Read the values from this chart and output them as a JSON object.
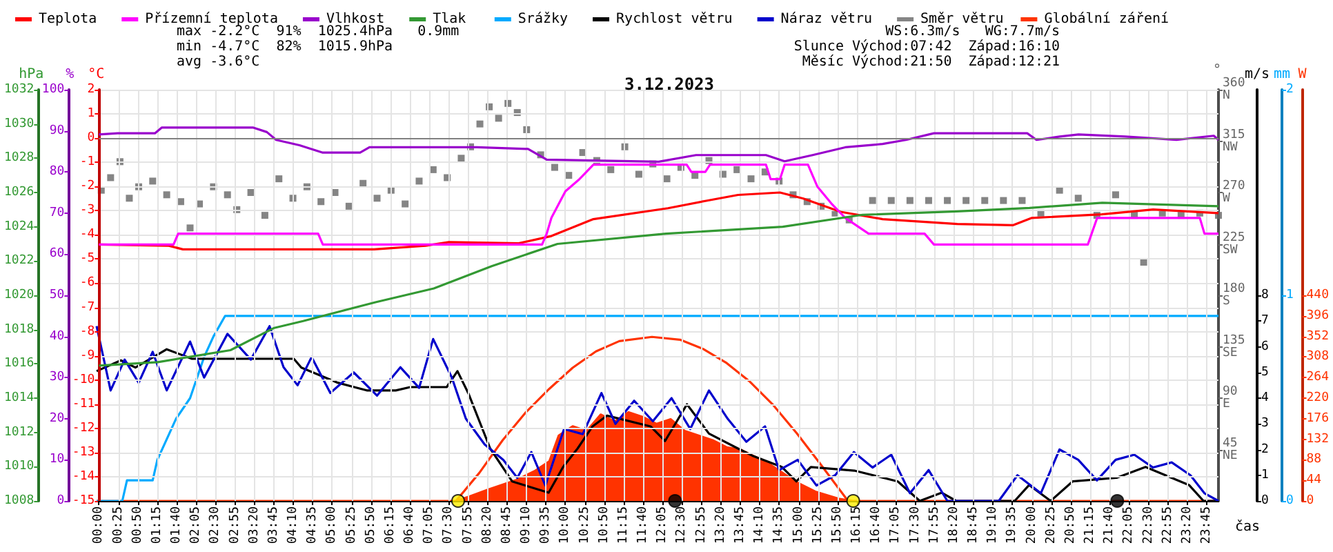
{
  "chart_data": [
    {
      "type": "line",
      "title": "3.12.2023",
      "xlabel": "čas",
      "ylabel": "°C",
      "y2label": "hPa",
      "y3label": "%",
      "xlim": [
        0,
        24
      ],
      "xticks": [
        {
          "value": 0,
          "label": "00:00"
        },
        {
          "value": 0.4167,
          "label": "00:25"
        },
        {
          "value": 0.8333,
          "label": "00:50"
        },
        {
          "value": 1.25,
          "label": "01:15"
        },
        {
          "value": 1.6667,
          "label": "01:40"
        },
        {
          "value": 2.0833,
          "label": "02:05"
        },
        {
          "value": 2.5,
          "label": "02:30"
        },
        {
          "value": 2.9167,
          "label": "02:55"
        },
        {
          "value": 3.3333,
          "label": "03:20"
        },
        {
          "value": 3.75,
          "label": "03:45"
        },
        {
          "value": 4.1667,
          "label": "04:10"
        },
        {
          "value": 4.5833,
          "label": "04:35"
        },
        {
          "value": 5,
          "label": "05:00"
        },
        {
          "value": 5.4167,
          "label": "05:25"
        },
        {
          "value": 5.8333,
          "label": "05:50"
        },
        {
          "value": 6.25,
          "label": "06:15"
        },
        {
          "value": 6.6667,
          "label": "06:40"
        },
        {
          "value": 7.0833,
          "label": "07:05"
        },
        {
          "value": 7.5,
          "label": "07:30"
        },
        {
          "value": 7.9167,
          "label": "07:55"
        },
        {
          "value": 8.3333,
          "label": "08:20"
        },
        {
          "value": 8.75,
          "label": "08:45"
        },
        {
          "value": 9.1667,
          "label": "09:10"
        },
        {
          "value": 9.5833,
          "label": "09:35"
        },
        {
          "value": 10,
          "label": "10:00"
        },
        {
          "value": 10.4167,
          "label": "10:25"
        },
        {
          "value": 10.8333,
          "label": "10:50"
        },
        {
          "value": 11.25,
          "label": "11:15"
        },
        {
          "value": 11.6667,
          "label": "11:40"
        },
        {
          "value": 12.0833,
          "label": "12:05"
        },
        {
          "value": 12.5,
          "label": "12:30"
        },
        {
          "value": 12.9167,
          "label": "12:55"
        },
        {
          "value": 13.3333,
          "label": "13:20"
        },
        {
          "value": 13.75,
          "label": "13:45"
        },
        {
          "value": 14.1667,
          "label": "14:10"
        },
        {
          "value": 14.5833,
          "label": "14:35"
        },
        {
          "value": 15,
          "label": "15:00"
        },
        {
          "value": 15.4167,
          "label": "15:25"
        },
        {
          "value": 15.8333,
          "label": "15:50"
        },
        {
          "value": 16.25,
          "label": "16:15"
        },
        {
          "value": 16.6667,
          "label": "16:40"
        },
        {
          "value": 17.0833,
          "label": "17:05"
        },
        {
          "value": 17.5,
          "label": "17:30"
        },
        {
          "value": 17.9167,
          "label": "17:55"
        },
        {
          "value": 18.3333,
          "label": "18:20"
        },
        {
          "value": 18.75,
          "label": "18:45"
        },
        {
          "value": 19.1667,
          "label": "19:10"
        },
        {
          "value": 19.5833,
          "label": "19:35"
        },
        {
          "value": 20,
          "label": "20:00"
        },
        {
          "value": 20.4167,
          "label": "20:25"
        },
        {
          "value": 20.8333,
          "label": "20:50"
        },
        {
          "value": 21.25,
          "label": "21:15"
        },
        {
          "value": 21.6667,
          "label": "21:40"
        },
        {
          "value": 22.0833,
          "label": "22:05"
        },
        {
          "value": 22.5,
          "label": "22:30"
        },
        {
          "value": 22.9167,
          "label": "22:55"
        },
        {
          "value": 23.3333,
          "label": "23:20"
        },
        {
          "value": 23.75,
          "label": "23:45"
        }
      ],
      "ylim": [
        -15,
        2
      ],
      "yticks": [
        -15,
        -14,
        -13,
        -12,
        -11,
        -10,
        -9,
        -8,
        -7,
        -6,
        -5,
        -4,
        -3,
        -2,
        -1,
        0,
        1,
        2
      ],
      "y2lim": [
        1008,
        1032
      ],
      "y2ticks": [
        1008,
        1010,
        1012,
        1014,
        1016,
        1018,
        1020,
        1022,
        1024,
        1026,
        1028,
        1030,
        1032
      ],
      "y3lim": [
        0,
        100
      ],
      "y3ticks": [
        0,
        10,
        20,
        30,
        40,
        50,
        60,
        70,
        80,
        90,
        100
      ],
      "grid": true,
      "legend": "top left",
      "ref_lines": [
        {
          "axis": "y",
          "value": 0,
          "color": "#808080"
        }
      ],
      "annotations": [
        "max -2.2°C  91%  1025.4hPa   0.9mm",
        "min -4.7°C  82%  1015.9hPa",
        "avg -3.6°C",
        "WS:6.3m/s   WG:7.7m/s",
        "Slunce Východ:07:42  Západ:16:10",
        "Měsíc Východ:21:50  Západ:12:21"
      ],
      "series": [
        {
          "name": "Teplota",
          "color": "#ff0000",
          "marker": "none",
          "x": [
            0,
            1.5,
            1.8,
            5.9,
            7.0,
            7.5,
            9,
            9.7,
            10.6,
            12.2,
            13,
            13.7,
            14.6,
            15.1,
            15.9,
            16.8,
            18.4,
            19.6,
            20,
            21.5,
            22.6,
            24
          ],
          "values": [
            -4.4,
            -4.45,
            -4.6,
            -4.6,
            -4.45,
            -4.3,
            -4.35,
            -4.05,
            -3.35,
            -2.9,
            -2.6,
            -2.35,
            -2.25,
            -2.5,
            -3.05,
            -3.35,
            -3.55,
            -3.6,
            -3.3,
            -3.15,
            -2.95,
            -3.1
          ]
        },
        {
          "name": "Přízemní teplota",
          "color": "#ff00ff",
          "marker": "none",
          "x": [
            0,
            1.6,
            1.7,
            4.7,
            4.8,
            9.5,
            9.6,
            9.7,
            10.0,
            10.3,
            10.6,
            12.6,
            12.7,
            13.0,
            13.1,
            14.3,
            14.4,
            14.6,
            14.7,
            15.2,
            15.4,
            15.7,
            16.0,
            16.5,
            17.7,
            17.9,
            21.2,
            21.4,
            23.6,
            23.7,
            24
          ],
          "values": [
            -4.4,
            -4.4,
            -3.95,
            -3.95,
            -4.4,
            -4.4,
            -3.95,
            -3.3,
            -2.2,
            -1.7,
            -1.1,
            -1.1,
            -1.4,
            -1.4,
            -1.1,
            -1.1,
            -1.7,
            -1.7,
            -1.1,
            -1.1,
            -2.0,
            -2.7,
            -3.3,
            -3.95,
            -3.95,
            -4.4,
            -4.4,
            -3.3,
            -3.3,
            -3.95,
            -3.95
          ]
        },
        {
          "name": "Vlhkost",
          "axis": "y3",
          "color": "#9900cc",
          "marker": "none",
          "x": [
            0,
            0.4,
            1.2,
            1.35,
            3.3,
            3.6,
            3.8,
            4.3,
            4.8,
            5.6,
            5.8,
            8.1,
            9.2,
            9.6,
            12.0,
            12.8,
            14.3,
            14.7,
            15.3,
            16.0,
            16.8,
            17.3,
            17.9,
            19.9,
            20.1,
            20.6,
            21,
            22,
            23.1,
            23.9,
            24
          ],
          "values": [
            89.1,
            89.4,
            89.4,
            90.8,
            90.8,
            89.7,
            87.8,
            86.5,
            84.7,
            84.7,
            86,
            86,
            85.6,
            83,
            82.5,
            84.1,
            84.1,
            82.6,
            84.1,
            86,
            86.8,
            87.8,
            89.4,
            89.4,
            87.8,
            88.6,
            89.1,
            88.6,
            87.8,
            88.8,
            87.8
          ]
        },
        {
          "name": "Tlak",
          "axis": "y2",
          "color": "#339933",
          "marker": "none",
          "x": [
            0,
            1.26,
            2.82,
            3.76,
            4.38,
            5.93,
            7.18,
            8.42,
            9.83,
            12.16,
            14.66,
            16.37,
            18.39,
            19.95,
            21.51,
            24
          ],
          "values": [
            1015.9,
            1016.1,
            1016.8,
            1018.1,
            1018.5,
            1019.6,
            1020.4,
            1021.7,
            1023.0,
            1023.6,
            1024.0,
            1024.7,
            1024.9,
            1025.1,
            1025.4,
            1025.2
          ]
        },
        {
          "type": "scatter",
          "color": "#ffee00",
          "marker": "circle",
          "x": [
            7.7,
            16.17
          ],
          "values": [
            -15,
            -15
          ]
        },
        {
          "type": "scatter",
          "color": "#000000",
          "marker": "circle",
          "x": [
            12.35,
            21.83
          ],
          "values": [
            -15,
            -15
          ]
        }
      ]
    },
    {
      "type": "line",
      "ylabel": "°",
      "y2label": "m/s",
      "y3label": "mm",
      "xlim": [
        0,
        24
      ],
      "tick_labels": "y",
      "legend": "top",
      "ylim": [
        0,
        360
      ],
      "yticks": [
        {
          "value": 45,
          "label": "45\nNE"
        },
        {
          "value": 90,
          "label": "90\nE"
        },
        {
          "value": 135,
          "label": "135\nSE"
        },
        {
          "value": 180,
          "label": "180\nS"
        },
        {
          "value": 225,
          "label": "225\nSW"
        },
        {
          "value": 270,
          "label": "270\nW"
        },
        {
          "value": 315,
          "label": "315\nNW"
        },
        {
          "value": 360,
          "label": "360\nN"
        }
      ],
      "y2lim": [
        0,
        16
      ],
      "y2ticks": [
        0,
        1,
        2,
        3,
        4,
        5,
        6,
        7,
        8
      ],
      "y3lim": [
        0,
        2
      ],
      "y3ticks": [
        0,
        1,
        2
      ],
      "series": [
        {
          "name": "Srážky",
          "axis": "y3",
          "color": "#00aaff",
          "marker": "none",
          "x": [
            0,
            0.55,
            0.65,
            1.2,
            1.3,
            1.5,
            1.7,
            2.0,
            2.3,
            2.5,
            2.75,
            24
          ],
          "values": [
            0,
            0,
            0.1,
            0.1,
            0.2,
            0.3,
            0.4,
            0.5,
            0.7,
            0.8,
            0.9,
            0.9
          ]
        },
        {
          "name": "Rychlost větru",
          "axis": "y2",
          "color": "#000000",
          "marker": "none",
          "x": [
            0,
            0.52,
            0.83,
            1.5,
            2.04,
            4.22,
            4.38,
            5.16,
            5.78,
            6.4,
            6.71,
            7.49,
            7.72,
            7.96,
            8.42,
            8.89,
            9.67,
            9.98,
            10.29,
            10.61,
            10.92,
            11.85,
            12.16,
            12.63,
            13.1,
            13.72,
            14.03,
            14.66,
            14.97,
            15.28,
            16.21,
            17.14,
            17.61,
            18.08,
            18.39,
            19.64,
            19.95,
            20.41,
            20.88,
            21.82,
            22.44,
            23.37,
            23.68,
            24
          ],
          "values": [
            5.05,
            5.47,
            5.19,
            5.9,
            5.53,
            5.53,
            5.19,
            4.6,
            4.3,
            4.3,
            4.43,
            4.43,
            5.05,
            4.16,
            2.04,
            0.76,
            0.32,
            1.32,
            2.04,
            2.9,
            3.32,
            2.9,
            2.33,
            3.76,
            2.62,
            2.04,
            1.76,
            1.32,
            0.76,
            1.32,
            1.18,
            0.76,
            0,
            0.32,
            0,
            0,
            0.62,
            0,
            0.76,
            0.9,
            1.32,
            0.62,
            0,
            0
          ]
        },
        {
          "name": "Náraz větru",
          "axis": "y2",
          "color": "#0000cc",
          "marker": "none",
          "x": [
            0,
            0.3,
            0.6,
            0.9,
            1.2,
            1.5,
            2.0,
            2.3,
            2.8,
            3.3,
            3.7,
            4.0,
            4.3,
            4.6,
            5.0,
            5.5,
            6.0,
            6.5,
            6.9,
            7.2,
            7.6,
            7.9,
            8.3,
            8.7,
            9.0,
            9.3,
            9.6,
            10.0,
            10.4,
            10.8,
            11.1,
            11.5,
            11.9,
            12.3,
            12.7,
            13.1,
            13.5,
            13.9,
            14.3,
            14.6,
            15.0,
            15.4,
            15.8,
            16.2,
            16.6,
            17.0,
            17.4,
            17.8,
            18.2,
            19.3,
            19.7,
            20.2,
            20.6,
            21.0,
            21.4,
            21.8,
            22.2,
            22.6,
            23.0,
            23.4,
            23.7,
            24
          ],
          "values": [
            6.8,
            4.3,
            5.5,
            4.6,
            5.8,
            4.3,
            6.2,
            4.8,
            6.5,
            5.5,
            6.8,
            5.2,
            4.5,
            5.6,
            4.2,
            5.0,
            4.1,
            5.2,
            4.4,
            6.3,
            4.8,
            3.2,
            2.2,
            1.6,
            0.9,
            1.9,
            0.6,
            2.8,
            2.6,
            4.2,
            3.0,
            3.9,
            3.1,
            4.0,
            2.8,
            4.3,
            3.2,
            2.3,
            2.9,
            1.2,
            1.6,
            0.6,
            1.0,
            1.9,
            1.3,
            1.8,
            0.3,
            1.2,
            0,
            0,
            1.0,
            0.3,
            2.0,
            1.6,
            0.8,
            1.6,
            1.8,
            1.3,
            1.5,
            1.0,
            0.3,
            0
          ]
        },
        {
          "name": "Směr větru",
          "type": "scatter",
          "color": "#666666",
          "marker": "square",
          "x": [
            0.1,
            0.3,
            0.5,
            0.7,
            0.9,
            1.2,
            1.5,
            1.8,
            2.0,
            2.2,
            2.5,
            2.8,
            3.0,
            3.3,
            3.6,
            3.9,
            4.2,
            4.5,
            4.8,
            5.1,
            5.4,
            5.7,
            6.0,
            6.3,
            6.6,
            6.9,
            7.2,
            7.5,
            7.8,
            8.0,
            8.2,
            8.4,
            8.6,
            8.8,
            9.0,
            9.2,
            9.5,
            9.8,
            10.1,
            10.4,
            10.7,
            11.0,
            11.3,
            11.6,
            11.9,
            12.2,
            12.5,
            12.8,
            13.1,
            13.4,
            13.7,
            14.0,
            14.3,
            14.6,
            14.9,
            15.2,
            15.5,
            15.8,
            16.1,
            16.6,
            17.0,
            17.4,
            17.8,
            18.2,
            18.6,
            19.0,
            19.4,
            19.8,
            20.2,
            20.6,
            21.0,
            21.4,
            21.8,
            22.2,
            22.4,
            22.8,
            23.2,
            23.6,
            24
          ],
          "values": [
            272,
            283,
            297,
            265,
            275,
            280,
            268,
            262,
            239,
            260,
            275,
            268,
            255,
            270,
            250,
            282,
            265,
            275,
            262,
            270,
            258,
            278,
            265,
            272,
            260,
            280,
            290,
            283,
            300,
            310,
            330,
            345,
            335,
            348,
            340,
            325,
            303,
            292,
            285,
            305,
            298,
            290,
            310,
            286,
            295,
            282,
            292,
            285,
            298,
            286,
            290,
            282,
            288,
            280,
            268,
            262,
            258,
            252,
            246,
            263,
            263,
            263,
            263,
            263,
            263,
            263,
            263,
            263,
            252,
            272,
            265,
            250,
            268,
            250,
            209,
            252,
            250,
            252,
            250
          ]
        }
      ]
    },
    {
      "type": "line",
      "ylabel": "W",
      "xlim": [
        0,
        24
      ],
      "tick_labels": "y",
      "legend": "top right",
      "ylim": [
        0,
        880
      ],
      "yticks": [
        0,
        44,
        88,
        132,
        176,
        220,
        264,
        308,
        352,
        396,
        440
      ],
      "series": [
        {
          "name": "Globální záření",
          "type": "area",
          "color": "#ff3300",
          "marker": "none",
          "x": [
            0,
            7.7,
            8.0,
            8.4,
            9.0,
            9.4,
            9.7,
            9.9,
            10.2,
            10.5,
            10.8,
            11.1,
            11.4,
            11.7,
            12.0,
            12.3,
            12.6,
            12.9,
            13.2,
            13.5,
            13.8,
            14.1,
            14.4,
            14.7,
            15.0,
            15.4,
            15.9,
            16.2,
            24
          ],
          "values": [
            0,
            0,
            10,
            25,
            45,
            65,
            85,
            140,
            160,
            150,
            185,
            170,
            190,
            180,
            165,
            175,
            150,
            140,
            130,
            115,
            110,
            95,
            80,
            60,
            40,
            20,
            5,
            0,
            0
          ]
        },
        {
          "color": "#ff3300",
          "marker": "none",
          "x": [
            7.7,
            8.2,
            8.7,
            9.2,
            9.7,
            10.2,
            10.7,
            11.2,
            11.9,
            12.5,
            13.0,
            13.5,
            14.0,
            14.5,
            15.0,
            15.5,
            16.1
          ],
          "values": [
            0,
            60,
            130,
            190,
            240,
            285,
            320,
            342,
            351,
            345,
            325,
            295,
            255,
            205,
            145,
            80,
            0
          ]
        }
      ]
    }
  ]
}
